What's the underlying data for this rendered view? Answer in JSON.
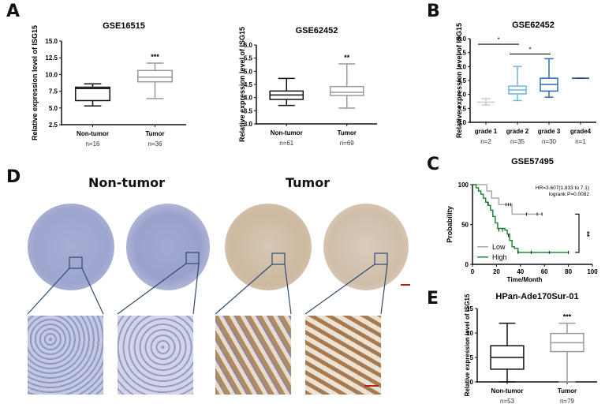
{
  "panels": {
    "A": "A",
    "B": "B",
    "C": "C",
    "D": "D",
    "E": "E"
  },
  "ylabel": "Relative expression level of ISG15",
  "ihc": {
    "non_tumor_title": "Non-tumor",
    "tumor_title": "Tumor",
    "colors": {
      "non_tumor": "#9fa6cf",
      "tumor": "#cdb8a0",
      "zoom_box": "#2f4a6e",
      "scale_bar": "#b22222"
    }
  },
  "chart_data": [
    {
      "type": "box",
      "panel": "A",
      "title": "GSE16515",
      "ylabel": "Relative expression level of ISG15",
      "ylim": [
        2.5,
        15.0
      ],
      "yticks": [
        "2.5",
        "5.0",
        "7.5",
        "10.0",
        "12.5",
        "15.0"
      ],
      "categories": [
        "Non-tumor",
        "Tumor"
      ],
      "n": [
        "n=16",
        "n=36"
      ],
      "boxes": [
        {
          "min": 5.3,
          "q1": 6.1,
          "median": 7.9,
          "q3": 8.1,
          "max": 8.6,
          "color": "#111111"
        },
        {
          "min": 6.4,
          "q1": 8.9,
          "median": 9.6,
          "q3": 10.6,
          "max": 11.7,
          "color": "#9a9a9a"
        }
      ],
      "annotation": "***"
    },
    {
      "type": "box",
      "panel": "A",
      "title": "GSE62452",
      "ylabel": "Relative expression level of ISG15",
      "ylim": [
        3.0,
        6.0
      ],
      "yticks": [
        "3.0",
        "3.5",
        "4.0",
        "4.5",
        "5.0",
        "5.5",
        "6.0"
      ],
      "categories": [
        "Non-tumor",
        "Tumor"
      ],
      "n": [
        "n=61",
        "n=69"
      ],
      "boxes": [
        {
          "min": 3.7,
          "q1": 3.93,
          "median": 4.1,
          "q3": 4.25,
          "max": 4.73,
          "color": "#111111"
        },
        {
          "min": 3.6,
          "q1": 4.08,
          "median": 4.2,
          "q3": 4.42,
          "max": 5.28,
          "color": "#9a9a9a"
        }
      ],
      "annotation": "**"
    },
    {
      "type": "box",
      "panel": "B",
      "title": "GSE62452",
      "ylabel": "Relative expression level of ISG15",
      "ylim": [
        3.0,
        6.0
      ],
      "yticks": [
        "3.0",
        "3.5",
        "4.0",
        "4.5",
        "5.0",
        "5.5",
        "6.0"
      ],
      "categories": [
        "grade 1",
        "grade 2",
        "grade 3",
        "grade4"
      ],
      "n": [
        "n=2",
        "n=35",
        "n=30",
        "n=1"
      ],
      "boxes": [
        {
          "min": 3.62,
          "q1": 3.72,
          "median": 3.72,
          "q3": 3.72,
          "max": 3.85,
          "color": "#cccccc"
        },
        {
          "min": 3.78,
          "q1": 4.02,
          "median": 4.16,
          "q3": 4.3,
          "max": 5.0,
          "color": "#6fb7dc"
        },
        {
          "min": 3.9,
          "q1": 4.12,
          "median": 4.36,
          "q3": 4.58,
          "max": 5.28,
          "color": "#2f6aa8"
        },
        {
          "min": 4.58,
          "q1": 4.58,
          "median": 4.58,
          "q3": 4.58,
          "max": 4.58,
          "color": "#1f3f7a"
        }
      ],
      "brackets": [
        {
          "from": 0,
          "to": 1,
          "y": 5.8,
          "label": "*"
        },
        {
          "from": 1,
          "to": 2,
          "y": 5.45,
          "label": "*"
        }
      ]
    },
    {
      "type": "line",
      "panel": "C",
      "title": "GSE57495",
      "xlabel": "Time/Month",
      "ylabel": "Probability",
      "xlim": [
        0,
        100
      ],
      "ylim": [
        0,
        100
      ],
      "xticks": [
        "0",
        "20",
        "40",
        "60",
        "80",
        "100"
      ],
      "yticks": [
        "0",
        "50",
        "100"
      ],
      "annotations": [
        "HR=3.607(1.833 to 7.1)",
        "logrank P=0.0082",
        "**"
      ],
      "legend": [
        "Low",
        "High"
      ],
      "series": [
        {
          "name": "Low",
          "color": "#aaaaaa",
          "x": [
            0,
            12,
            12,
            16,
            16,
            22,
            22,
            33,
            33,
            58
          ],
          "y": [
            100,
            100,
            92,
            92,
            83,
            83,
            75,
            75,
            63,
            63
          ],
          "censored": [
            [
              28,
              75
            ],
            [
              30,
              75
            ],
            [
              32,
              75
            ],
            [
              45,
              63
            ],
            [
              54,
              63
            ],
            [
              58,
              63
            ]
          ]
        },
        {
          "name": "High",
          "color": "#1f8a3a",
          "x": [
            0,
            3,
            5,
            7,
            9,
            11,
            13,
            15,
            17,
            19,
            21,
            27,
            29,
            31,
            33,
            35,
            38,
            80
          ],
          "y": [
            100,
            96,
            92,
            88,
            83,
            78,
            74,
            68,
            60,
            52,
            45,
            43,
            38,
            30,
            22,
            20,
            15,
            15
          ],
          "censored": [
            [
              13,
              76
            ],
            [
              22,
              43
            ],
            [
              25,
              43
            ],
            [
              30,
              36
            ],
            [
              38,
              15
            ],
            [
              49,
              15
            ],
            [
              64,
              15
            ],
            [
              80,
              15
            ]
          ]
        }
      ]
    },
    {
      "type": "box",
      "panel": "E",
      "title": "HPan-Ade170Sur-01",
      "ylabel": "Relative expression level of ISG15",
      "ylim": [
        0,
        15
      ],
      "yticks": [
        "0",
        "5",
        "10",
        "15"
      ],
      "categories": [
        "Non-tumor",
        "Tumor"
      ],
      "n": [
        "n=53",
        "n=79"
      ],
      "boxes": [
        {
          "min": 0,
          "q1": 2.6,
          "median": 5.0,
          "q3": 7.4,
          "max": 12.0,
          "color": "#111111"
        },
        {
          "min": 0,
          "q1": 6.2,
          "median": 8.0,
          "q3": 9.9,
          "max": 12.0,
          "color": "#9a9a9a"
        }
      ],
      "annotation": "***"
    }
  ]
}
